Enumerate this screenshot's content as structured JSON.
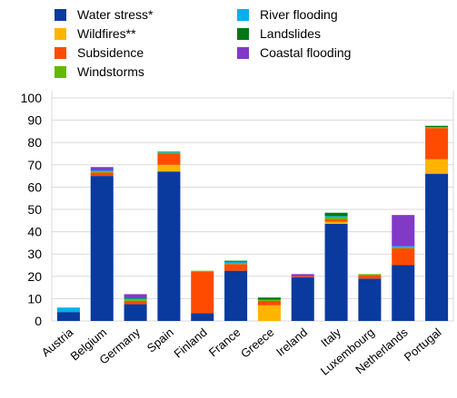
{
  "chart_data": {
    "type": "bar",
    "stacked": true,
    "categories": [
      "Austria",
      "Belgium",
      "Germany",
      "Spain",
      "Finland",
      "France",
      "Greece",
      "Ireland",
      "Italy",
      "Luxembourg",
      "Netherlands",
      "Portugal"
    ],
    "series": [
      {
        "name": "Water stress*",
        "color": "#0a3a9e",
        "values": [
          4,
          65,
          7.5,
          67,
          3.5,
          22.5,
          0,
          19.5,
          43.5,
          19,
          25,
          66
        ]
      },
      {
        "name": "Wildfires**",
        "color": "#ffb400",
        "values": [
          0,
          0,
          0,
          3,
          0,
          0,
          7,
          0,
          1,
          0,
          0,
          6.5
        ]
      },
      {
        "name": "Subsidence",
        "color": "#ff4b00",
        "values": [
          0,
          1.5,
          1.5,
          5,
          18.5,
          3,
          2,
          0.5,
          1,
          1.5,
          7.5,
          14
        ]
      },
      {
        "name": "Windstorms",
        "color": "#65b800",
        "values": [
          0,
          0.5,
          0.5,
          0.5,
          0.5,
          0.5,
          0.5,
          0,
          1,
          0.5,
          0.5,
          0.5
        ]
      },
      {
        "name": "River flooding",
        "color": "#00b1ea",
        "values": [
          2,
          0.5,
          0.5,
          0.5,
          0,
          0.5,
          0,
          0,
          0.5,
          0,
          0.5,
          0
        ]
      },
      {
        "name": "Landslides",
        "color": "#007816",
        "values": [
          0,
          0,
          0.5,
          0,
          0,
          0.5,
          1,
          0,
          1.5,
          0,
          0,
          0.5
        ]
      },
      {
        "name": "Coastal flooding",
        "color": "#8139c6",
        "values": [
          0,
          1.5,
          1.5,
          0,
          0,
          0,
          0,
          1,
          0,
          0,
          14,
          0
        ]
      }
    ],
    "legend_placement": "top",
    "ylim": [
      0,
      100
    ],
    "yticks": [
      0,
      10,
      20,
      30,
      40,
      50,
      60,
      70,
      80,
      90,
      100
    ],
    "grid": true,
    "title": "",
    "xlabel": "",
    "ylabel": ""
  }
}
